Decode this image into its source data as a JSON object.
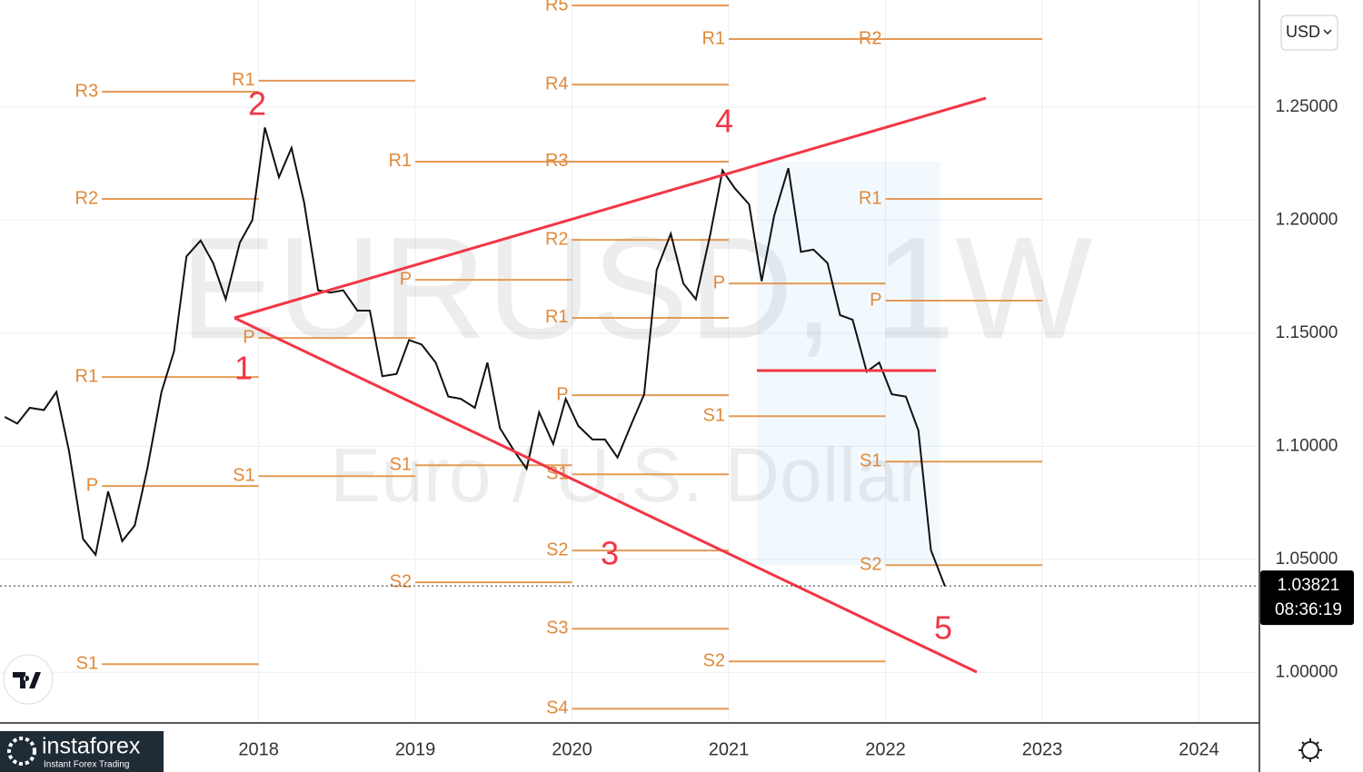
{
  "chart_data": {
    "type": "line",
    "symbol": "EURUSD, 1W",
    "description": "Euro / U.S. Dollar",
    "currency": "USD",
    "last_price": 1.03821,
    "countdown": "08:36:19",
    "brand": "instaforex",
    "brand_tagline": "Instant Forex Trading",
    "xlim": [
      2016.35,
      2024.38
    ],
    "xticks": [
      2018,
      2019,
      2020,
      2021,
      2022,
      2023,
      2024
    ],
    "ylim": [
      0.978,
      1.2974
    ],
    "yticks": [
      {
        "value": 1.0,
        "label": "1.00000"
      },
      {
        "value": 1.05,
        "label": "1.05000"
      },
      {
        "value": 1.1,
        "label": "1.10000"
      },
      {
        "value": 1.15,
        "label": "1.15000"
      },
      {
        "value": 1.2,
        "label": "1.20000"
      },
      {
        "value": 1.25,
        "label": "1.25000"
      }
    ],
    "grid": true,
    "series": [
      {
        "color": "#111111",
        "x": [
          2016.38,
          2016.46,
          2016.54,
          2016.63,
          2016.71,
          2016.79,
          2016.88,
          2016.96,
          2017.04,
          2017.13,
          2017.21,
          2017.29,
          2017.38,
          2017.46,
          2017.54,
          2017.63,
          2017.71,
          2017.79,
          2017.88,
          2017.96,
          2018.04,
          2018.13,
          2018.21,
          2018.29,
          2018.38,
          2018.46,
          2018.54,
          2018.63,
          2018.71,
          2018.79,
          2018.88,
          2018.96,
          2019.04,
          2019.13,
          2019.21,
          2019.29,
          2019.38,
          2019.46,
          2019.54,
          2019.63,
          2019.71,
          2019.79,
          2019.88,
          2019.96,
          2020.04,
          2020.13,
          2020.21,
          2020.29,
          2020.38,
          2020.46,
          2020.54,
          2020.63,
          2020.71,
          2020.79,
          2020.88,
          2020.96,
          2021.04,
          2021.13,
          2021.21,
          2021.29,
          2021.38,
          2021.46,
          2021.54,
          2021.63,
          2021.71,
          2021.79,
          2021.88,
          2021.96,
          2022.04,
          2022.13,
          2022.21,
          2022.29,
          2022.38
        ],
        "values": [
          1.113,
          1.11,
          1.117,
          1.116,
          1.124,
          1.098,
          1.059,
          1.052,
          1.08,
          1.058,
          1.065,
          1.09,
          1.124,
          1.142,
          1.184,
          1.191,
          1.181,
          1.165,
          1.19,
          1.2,
          1.241,
          1.219,
          1.232,
          1.208,
          1.169,
          1.168,
          1.169,
          1.16,
          1.16,
          1.131,
          1.132,
          1.147,
          1.145,
          1.137,
          1.122,
          1.121,
          1.117,
          1.137,
          1.108,
          1.098,
          1.09,
          1.115,
          1.101,
          1.121,
          1.109,
          1.103,
          1.103,
          1.095,
          1.11,
          1.123,
          1.178,
          1.194,
          1.172,
          1.165,
          1.193,
          1.222,
          1.214,
          1.207,
          1.173,
          1.202,
          1.223,
          1.186,
          1.187,
          1.181,
          1.158,
          1.156,
          1.133,
          1.137,
          1.123,
          1.122,
          1.107,
          1.054,
          1.038
        ]
      }
    ],
    "pivot_color": "#e0893a",
    "pivots": [
      {
        "label": "R3",
        "value": 1.2568,
        "start": 2017,
        "end": 2018
      },
      {
        "label": "R2",
        "value": 1.2094,
        "start": 2017,
        "end": 2018
      },
      {
        "label": "R1",
        "value": 1.1306,
        "start": 2017,
        "end": 2018
      },
      {
        "label": "P",
        "value": 1.0824,
        "start": 2017,
        "end": 2018
      },
      {
        "label": "S1",
        "value": 1.0036,
        "start": 2017,
        "end": 2018
      },
      {
        "label": "R1",
        "value": 1.2617,
        "start": 2018,
        "end": 2019
      },
      {
        "label": "P",
        "value": 1.1479,
        "start": 2018,
        "end": 2019
      },
      {
        "label": "S1",
        "value": 1.0868,
        "start": 2018,
        "end": 2019
      },
      {
        "label": "R1",
        "value": 1.2259,
        "start": 2019,
        "end": 2020
      },
      {
        "label": "P",
        "value": 1.1736,
        "start": 2019,
        "end": 2020
      },
      {
        "label": "S1",
        "value": 1.0916,
        "start": 2019,
        "end": 2020
      },
      {
        "label": "S2",
        "value": 1.0398,
        "start": 2019,
        "end": 2020
      },
      {
        "label": "R5",
        "value": 1.295,
        "start": 2020,
        "end": 2021
      },
      {
        "label": "R4",
        "value": 1.26,
        "start": 2020,
        "end": 2021
      },
      {
        "label": "R3",
        "value": 1.2259,
        "start": 2020,
        "end": 2021
      },
      {
        "label": "R2",
        "value": 1.1913,
        "start": 2020,
        "end": 2021
      },
      {
        "label": "R1",
        "value": 1.1568,
        "start": 2020,
        "end": 2021
      },
      {
        "label": "P",
        "value": 1.1226,
        "start": 2020,
        "end": 2021
      },
      {
        "label": "S1",
        "value": 1.0876,
        "start": 2020,
        "end": 2021
      },
      {
        "label": "S2",
        "value": 1.0539,
        "start": 2020,
        "end": 2021
      },
      {
        "label": "S3",
        "value": 1.0193,
        "start": 2020,
        "end": 2021
      },
      {
        "label": "S4",
        "value": 0.9839,
        "start": 2020,
        "end": 2021
      },
      {
        "label": "R1",
        "value": 1.2801,
        "start": 2021,
        "end": 2022
      },
      {
        "label": "P",
        "value": 1.172,
        "start": 2021,
        "end": 2022
      },
      {
        "label": "S1",
        "value": 1.1133,
        "start": 2021,
        "end": 2022
      },
      {
        "label": "S2",
        "value": 1.0048,
        "start": 2021,
        "end": 2022
      },
      {
        "label": "R2",
        "value": 1.2801,
        "start": 2022,
        "end": 2023
      },
      {
        "label": "R1",
        "value": 1.2094,
        "start": 2022,
        "end": 2023
      },
      {
        "label": "P",
        "value": 1.1644,
        "start": 2022,
        "end": 2023
      },
      {
        "label": "S1",
        "value": 1.0932,
        "start": 2022,
        "end": 2023
      },
      {
        "label": "S2",
        "value": 1.0474,
        "start": 2022,
        "end": 2023
      }
    ],
    "waves": [
      "1",
      "2",
      "3",
      "4",
      "5"
    ]
  }
}
